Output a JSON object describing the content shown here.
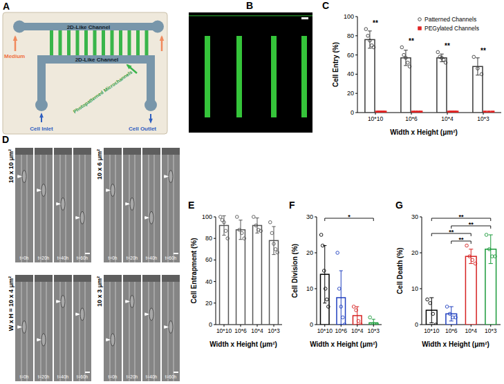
{
  "chart_data": [
    {
      "type": "bar",
      "label": "C",
      "ylabel": "Cell Entry (%)",
      "xlabel": "Width x Height (μm²)",
      "categories": [
        "10*10",
        "10*6",
        "10*4",
        "10*3"
      ],
      "ylim": [
        0,
        100
      ],
      "yticks": [
        0,
        20,
        40,
        60,
        80,
        100
      ],
      "legend": "top-right",
      "series": [
        {
          "name": "Patterned Channels",
          "color": "#3a3a3a",
          "marker": "circle",
          "values": [
            76,
            57,
            57,
            48
          ],
          "errors": [
            9,
            8,
            4,
            9
          ],
          "points": [
            [
              87,
              80,
              75,
              70,
              68
            ],
            [
              68,
              60,
              57,
              52,
              48
            ],
            [
              63,
              58,
              57,
              55,
              52
            ],
            [
              58,
              46,
              40
            ]
          ]
        },
        {
          "name": "PEGylated Channels",
          "color": "#e02424",
          "marker": "square",
          "values": [
            0,
            0,
            0,
            0
          ],
          "errors": [
            0,
            0,
            0,
            0
          ],
          "points": [
            [
              0,
              0,
              0,
              0,
              0
            ],
            [
              0,
              0,
              0,
              0
            ],
            [
              0,
              0,
              0,
              0,
              0
            ],
            [
              0,
              0,
              0
            ]
          ]
        }
      ],
      "significance": [
        {
          "category": "10*10",
          "label": "**"
        },
        {
          "category": "10*6",
          "label": "**"
        },
        {
          "category": "10*4",
          "label": "**"
        },
        {
          "category": "10*3",
          "label": "**"
        }
      ]
    },
    {
      "type": "bar",
      "label": "E",
      "ylabel": "Cell Entrapment (%)",
      "xlabel": "Width x Height (μm²)",
      "categories": [
        "10*10",
        "10*6",
        "10*4",
        "10*3"
      ],
      "ylim": [
        0,
        100
      ],
      "yticks": [
        0,
        20,
        40,
        60,
        80,
        100
      ],
      "color": "#555555",
      "marker": "circle",
      "values": [
        92,
        88,
        92,
        78
      ],
      "errors": [
        9,
        9,
        7,
        13
      ],
      "points": [
        [
          100,
          97,
          95,
          87,
          80
        ],
        [
          100,
          88,
          85,
          80
        ],
        [
          100,
          92,
          88,
          87
        ],
        [
          95,
          85,
          75,
          70,
          67
        ]
      ]
    },
    {
      "type": "bar",
      "label": "F",
      "ylabel": "Cell Division (%)",
      "xlabel": "Width x Height (μm²)",
      "categories": [
        "10*10",
        "10*6",
        "10*4",
        "10*3"
      ],
      "ylim": [
        0,
        30
      ],
      "yticks": [
        0,
        10,
        20,
        30
      ],
      "colors": [
        "#000000",
        "#1f3fbf",
        "#d62020",
        "#1a9a3a"
      ],
      "marker": "circle",
      "values": [
        14,
        7.5,
        2.5,
        0.5
      ],
      "errors": [
        8,
        7.5,
        2.5,
        1
      ],
      "points": [
        [
          25,
          22,
          15,
          10,
          7,
          5
        ],
        [
          20,
          10,
          5,
          2,
          0
        ],
        [
          5,
          4,
          1,
          0
        ],
        [
          2,
          0,
          0,
          0
        ]
      ],
      "significance": [
        {
          "between": [
            "10*10",
            "10*3"
          ],
          "label": "*"
        }
      ]
    },
    {
      "type": "bar",
      "label": "G",
      "ylabel": "Cell Death (%)",
      "xlabel": "Width x Height (μm²)",
      "categories": [
        "10*10",
        "10*6",
        "10*4",
        "10*3"
      ],
      "ylim": [
        0,
        30
      ],
      "yticks": [
        0,
        10,
        20,
        30
      ],
      "colors": [
        "#000000",
        "#1f3fbf",
        "#d62020",
        "#1a9a3a"
      ],
      "marker": "circle",
      "values": [
        4,
        3,
        19,
        21
      ],
      "errors": [
        3.5,
        2,
        2,
        4
      ],
      "points": [
        [
          7,
          6,
          3,
          0
        ],
        [
          5,
          3,
          2,
          2
        ],
        [
          22,
          19,
          18,
          17
        ],
        [
          25,
          21,
          19,
          19
        ]
      ],
      "significance": [
        {
          "between": [
            "10*10",
            "10*3"
          ],
          "label": "**"
        },
        {
          "between": [
            "10*6",
            "10*3"
          ],
          "label": "**"
        },
        {
          "between": [
            "10*10",
            "10*4"
          ],
          "label": "**"
        },
        {
          "between": [
            "10*6",
            "10*4"
          ],
          "label": "**"
        }
      ]
    }
  ],
  "schematic": {
    "label": "A",
    "top_channel": "2D-Like Channel",
    "bottom_channel": "2D-Like Channel",
    "medium": "Medium",
    "microchannels": "Photopatterned Microchannels",
    "cell_inlet": "Cell Inlet",
    "cell_outlet": "Cell Outlet"
  },
  "image_b": {
    "label": "B"
  },
  "timelapse": {
    "label": "D",
    "panels": [
      {
        "title": "10 x 10 μm²",
        "times": [
          "t=0h",
          "t=20h",
          "t=40h",
          "t=60h"
        ]
      },
      {
        "title": "10 x 6 μm²",
        "times": [
          "t=0h",
          "t=20h",
          "t=40h",
          "t=60h"
        ]
      },
      {
        "prefix": "W x H =",
        "title": "10 x 4 μm²",
        "times": [
          "t=0h",
          "t=20h",
          "t=40h",
          "t=60h"
        ]
      },
      {
        "title": "10 x 3 μm²",
        "times": [
          "t=0h",
          "t=20h",
          "t=40h",
          "t=60h"
        ]
      }
    ]
  }
}
